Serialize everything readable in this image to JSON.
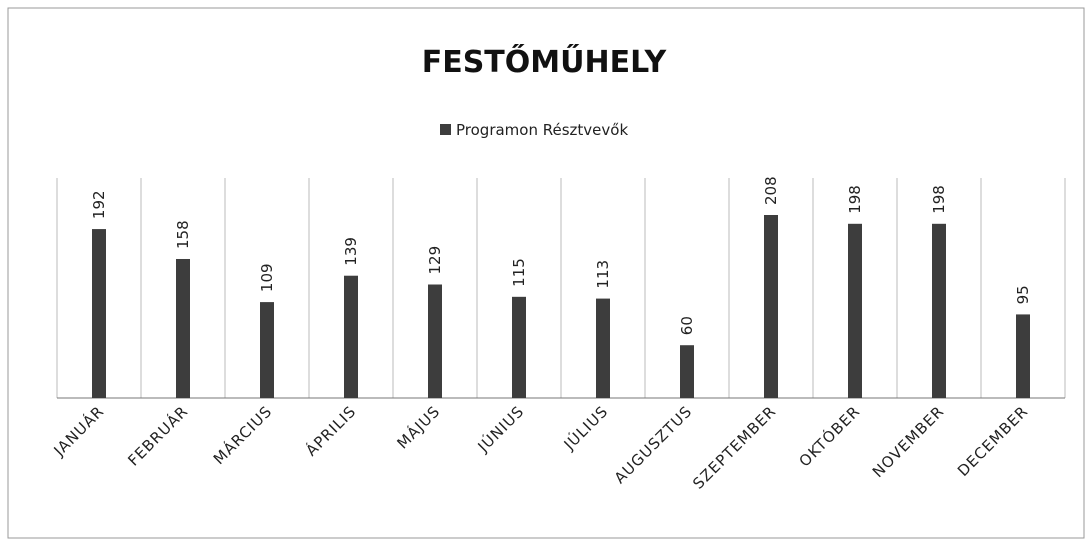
{
  "chart_data": {
    "type": "bar",
    "title": "FESTŐMŰHELY",
    "categories": [
      "JANUÁR",
      "FEBRUÁR",
      "MÁRCIUS",
      "ÁPRILIS",
      "MÁJUS",
      "JÚNIUS",
      "JÚLIUS",
      "AUGUSZTUS",
      "SZEPTEMBER",
      "OKTÓBER",
      "NOVEMBER",
      "DECEMBER"
    ],
    "series": [
      {
        "name": "Programon Résztvevők",
        "color": "#3d3d3d",
        "values": [
          192,
          158,
          109,
          139,
          129,
          115,
          113,
          60,
          208,
          198,
          198,
          95
        ]
      }
    ],
    "grid": true,
    "legend": "top"
  }
}
